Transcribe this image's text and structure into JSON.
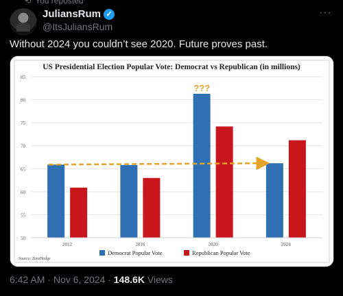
{
  "repost": {
    "label": "You reposted"
  },
  "author": {
    "name": "JuliansRum",
    "handle": "@ItsJuliansRum"
  },
  "tweet": {
    "text": "Without 2024 you couldn’t see 2020. Future proves past."
  },
  "meta": {
    "time": "6:42 AM",
    "date": "Nov 6, 2024",
    "views": "148.6K",
    "views_label": "Views",
    "separator": "·"
  },
  "colors": {
    "democrat": "#2f6fb3",
    "republican": "#c8161d",
    "arrow": "#e3a32a",
    "verified": "#1d9bf0"
  },
  "icons": {
    "repost": "repost-icon",
    "verified": "verified-badge-icon",
    "more": "more-icon"
  },
  "chart_data": {
    "type": "bar",
    "title": "US Presidential Election Popular Vote: Democrat vs Republican (in millions)",
    "categories": [
      "2012",
      "2016",
      "2020",
      "2024"
    ],
    "series": [
      {
        "name": "Democrat Popular Vote",
        "values": [
          65.9,
          65.8,
          81.3,
          66.2
        ]
      },
      {
        "name": "Republican Popular Vote",
        "values": [
          60.9,
          63.0,
          74.2,
          71.2
        ]
      }
    ],
    "y_ticks": [
      "50",
      "55",
      "60",
      "65",
      "70",
      "75",
      "80",
      "85"
    ],
    "ylim": [
      50,
      85
    ],
    "grid": true,
    "legend": "bottom-center",
    "annotation": "???",
    "source": "Source: ZeroHedge"
  }
}
